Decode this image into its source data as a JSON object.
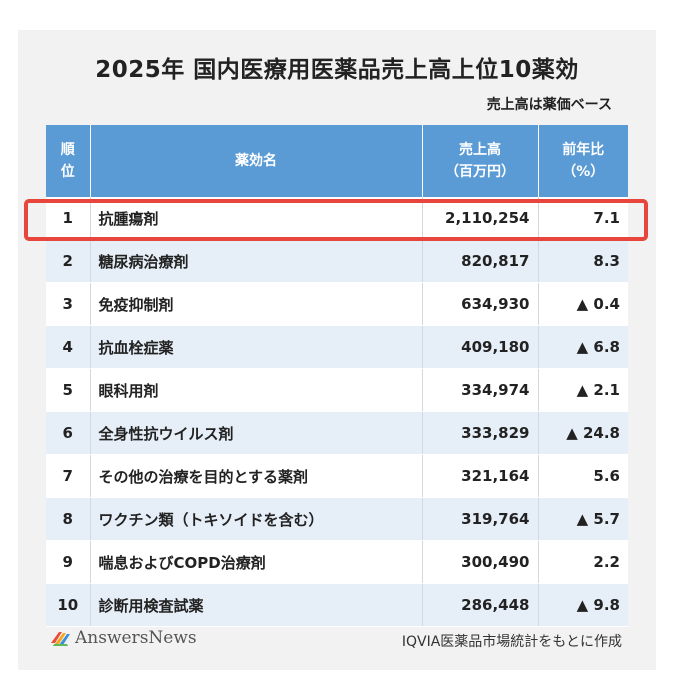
{
  "title": "2025年 国内医療用医薬品売上高上位10薬効",
  "subtitle": "売上高は薬価ベース",
  "table": {
    "headers": {
      "rank_line1": "順",
      "rank_line2": "位",
      "name": "薬効名",
      "sales_line1": "売上高",
      "sales_line2": "（百万円）",
      "yoy_line1": "前年比",
      "yoy_line2": "（%）"
    },
    "rows": [
      {
        "rank": "1",
        "name": "抗腫瘍剤",
        "sales": "2,110,254",
        "yoy": "7.1"
      },
      {
        "rank": "2",
        "name": "糖尿病治療剤",
        "sales": "820,817",
        "yoy": "8.3"
      },
      {
        "rank": "3",
        "name": "免疫抑制剤",
        "sales": "634,930",
        "yoy": "▲ 0.4"
      },
      {
        "rank": "4",
        "name": "抗血栓症薬",
        "sales": "409,180",
        "yoy": "▲ 6.8"
      },
      {
        "rank": "5",
        "name": "眼科用剤",
        "sales": "334,974",
        "yoy": "▲ 2.1"
      },
      {
        "rank": "6",
        "name": "全身性抗ウイルス剤",
        "sales": "333,829",
        "yoy": "▲ 24.8"
      },
      {
        "rank": "7",
        "name": "その他の治療を目的とする薬剤",
        "sales": "321,164",
        "yoy": "5.6"
      },
      {
        "rank": "8",
        "name": "ワクチン類（トキソイドを含む）",
        "sales": "319,764",
        "yoy": "▲ 5.7"
      },
      {
        "rank": "9",
        "name": "喘息およびCOPD治療剤",
        "sales": "300,490",
        "yoy": "2.2"
      },
      {
        "rank": "10",
        "name": "診断用検査試薬",
        "sales": "286,448",
        "yoy": "▲ 9.8"
      }
    ]
  },
  "highlight_color": "#e8453c",
  "header_color": "#5b9bd5",
  "footer": {
    "logo_text": "AnswersNews",
    "logo_icon": "answersnews-logo-icon",
    "source": "IQVIA医薬品市場統計をもとに作成"
  }
}
